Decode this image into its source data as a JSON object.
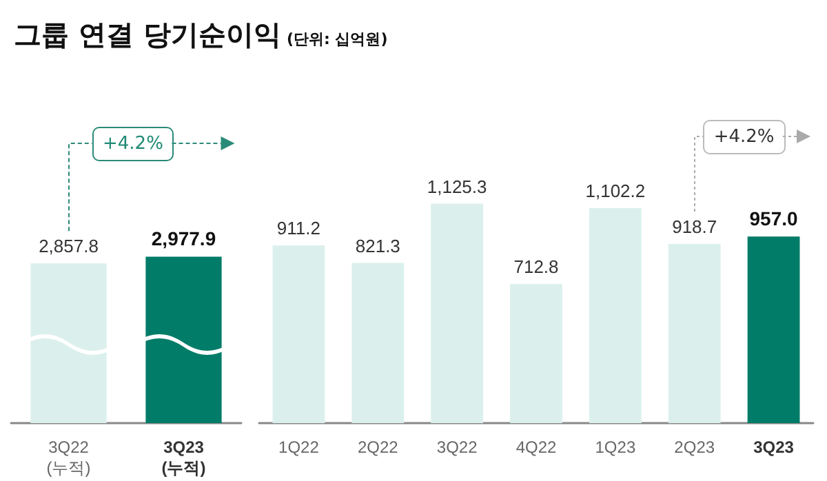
{
  "chart_data": [
    {
      "type": "other",
      "title": "그룹 연결 당기순이익",
      "subtitle": "(단위: 십억원)"
    },
    {
      "type": "bar",
      "categories": [
        "3Q22\n(누적)",
        "3Q23\n(누적)"
      ],
      "values": [
        2857.8,
        2977.9
      ],
      "colors": [
        "#dbf0ec",
        "#007c68"
      ],
      "value_labels": [
        "2,857.8",
        "2,977.9"
      ],
      "annotations": [
        "+4.2%"
      ]
    },
    {
      "type": "bar",
      "categories": [
        "1Q22",
        "2Q22",
        "3Q22",
        "4Q22",
        "1Q23",
        "2Q23",
        "3Q23"
      ],
      "values": [
        911.2,
        821.3,
        1125.3,
        712.8,
        1102.2,
        918.7,
        957.0
      ],
      "colors": [
        "#dbf0ec",
        "#dbf0ec",
        "#dbf0ec",
        "#dbf0ec",
        "#dbf0ec",
        "#dbf0ec",
        "#007c68"
      ],
      "value_labels": [
        "911.2",
        "821.3",
        "1,125.3",
        "712.8",
        "1,102.2",
        "918.7",
        "957.0"
      ],
      "annotations": [
        "+4.2%"
      ]
    }
  ]
}
